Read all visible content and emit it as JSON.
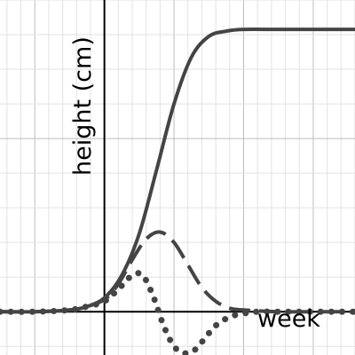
{
  "chart_data": {
    "type": "line",
    "xlabel": "week",
    "ylabel": "height (cm)",
    "xlim": [
      -1.5,
      3.6
    ],
    "ylim": [
      -0.25,
      1.8
    ],
    "grid": true,
    "tick_labels": false,
    "series": [
      {
        "style": "solid",
        "color": "#444444",
        "x": [
          -1.5,
          -1.0,
          -0.5,
          -0.25,
          0.0,
          0.25,
          0.5,
          0.75,
          1.0,
          1.25,
          1.5,
          1.75,
          2.0,
          2.5,
          3.0,
          3.6
        ],
        "y": [
          0.0,
          0.0,
          0.01,
          0.03,
          0.08,
          0.21,
          0.45,
          0.82,
          1.2,
          1.47,
          1.59,
          1.62,
          1.63,
          1.63,
          1.63,
          1.63
        ]
      },
      {
        "style": "dashed",
        "color": "#444444",
        "x": [
          -1.5,
          -1.0,
          -0.5,
          -0.25,
          0.0,
          0.2,
          0.4,
          0.6,
          0.8,
          1.0,
          1.2,
          1.4,
          1.6,
          1.8,
          2.0,
          2.5,
          3.0,
          3.6
        ],
        "y": [
          0.0,
          0.0,
          0.01,
          0.03,
          0.07,
          0.16,
          0.3,
          0.42,
          0.46,
          0.4,
          0.27,
          0.14,
          0.06,
          0.02,
          0.01,
          0.0,
          0.0,
          0.0
        ]
      },
      {
        "style": "dotted",
        "color": "#444444",
        "x": [
          -1.5,
          -1.0,
          -0.5,
          -0.25,
          0.0,
          0.2,
          0.4,
          0.55,
          0.7,
          0.85,
          1.0,
          1.15,
          1.3,
          1.45,
          1.6,
          1.8,
          2.0,
          2.2,
          2.5,
          3.0,
          3.6
        ],
        "y": [
          0.0,
          0.0,
          0.01,
          0.03,
          0.06,
          0.13,
          0.21,
          0.21,
          0.09,
          -0.08,
          -0.2,
          -0.24,
          -0.22,
          -0.15,
          -0.08,
          -0.03,
          -0.01,
          0.0,
          0.0,
          0.0,
          0.0
        ]
      }
    ]
  }
}
